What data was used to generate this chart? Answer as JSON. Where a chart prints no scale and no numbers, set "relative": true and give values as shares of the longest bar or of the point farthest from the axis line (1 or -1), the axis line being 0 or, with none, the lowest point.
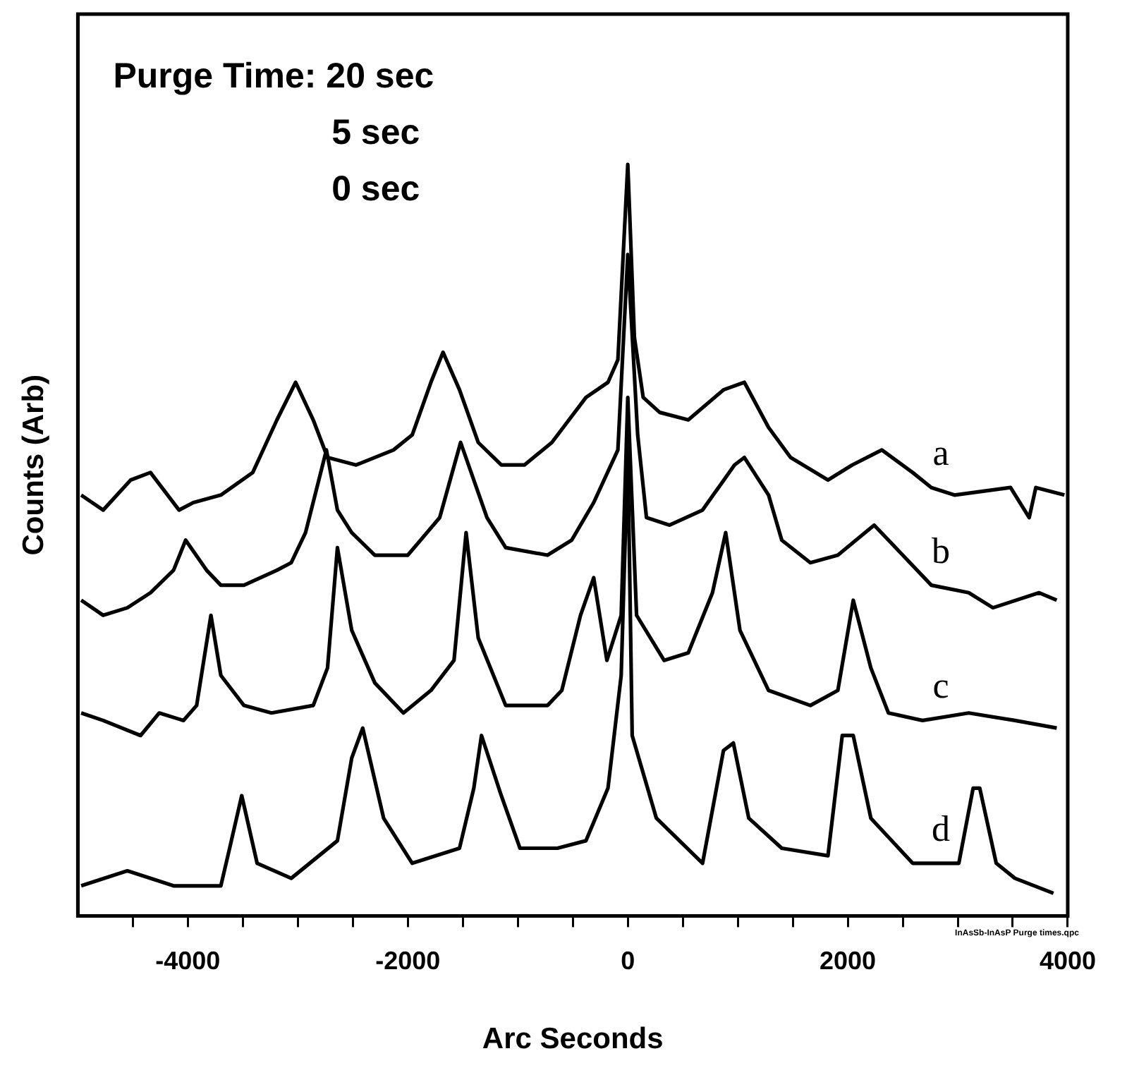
{
  "chart_data": {
    "type": "line",
    "relative": true,
    "xlabel": "Arc Seconds",
    "ylabel": "Counts (Arb)",
    "xlim": [
      -5000,
      4000
    ],
    "xticks": [
      {
        "value": -4500,
        "label": null
      },
      -4000,
      {
        "value": -3500,
        "label": null
      },
      {
        "value": -3000,
        "label": null
      },
      {
        "value": -2500,
        "label": null
      },
      -2000,
      {
        "value": -1500,
        "label": null
      },
      {
        "value": -1000,
        "label": null
      },
      {
        "value": -500,
        "label": null
      },
      0,
      {
        "value": 500,
        "label": null
      },
      {
        "value": 1000,
        "label": null
      },
      {
        "value": 1500,
        "label": null
      },
      2000,
      {
        "value": 2500,
        "label": null
      },
      {
        "value": 3000,
        "label": null
      },
      {
        "value": 3500,
        "label": null
      },
      4000
    ],
    "grid": false,
    "legend": false,
    "marker": "none",
    "line_style": "solid",
    "annotations": [
      "Purge Time: 20 sec",
      "5 sec",
      "0 sec",
      "InAsSb-InAsP Purge times.qpc"
    ],
    "series": [
      {
        "name": "a",
        "color": "#000000",
        "x": [
          -4970,
          -4770,
          -4520,
          -4340,
          -4080,
          -3950,
          -3700,
          -3410,
          -3190,
          -3020,
          -2860,
          -2730,
          -2470,
          -2130,
          -1960,
          -1790,
          -1680,
          -1530,
          -1360,
          -1150,
          -940,
          -690,
          -380,
          -180,
          -90,
          0,
          60,
          140,
          290,
          550,
          870,
          1060,
          1280,
          1480,
          1820,
          2040,
          2310,
          2590,
          2760,
          2970,
          3480,
          3650,
          3710,
          3970
        ],
        "values": [
          0.56,
          0.54,
          0.58,
          0.59,
          0.54,
          0.55,
          0.56,
          0.59,
          0.66,
          0.71,
          0.66,
          0.61,
          0.6,
          0.62,
          0.64,
          0.71,
          0.75,
          0.7,
          0.63,
          0.6,
          0.6,
          0.63,
          0.69,
          0.71,
          0.74,
          1.0,
          0.77,
          0.69,
          0.67,
          0.66,
          0.7,
          0.71,
          0.65,
          0.61,
          0.58,
          0.6,
          0.62,
          0.59,
          0.57,
          0.56,
          0.57,
          0.53,
          0.57,
          0.56
        ]
      },
      {
        "name": "b",
        "color": "#000000",
        "x": [
          -4970,
          -4770,
          -4550,
          -4340,
          -4130,
          -4020,
          -3830,
          -3700,
          -3490,
          -3190,
          -3060,
          -2930,
          -2740,
          -2640,
          -2510,
          -2300,
          -2000,
          -1710,
          -1520,
          -1280,
          -1110,
          -730,
          -510,
          -310,
          -90,
          0,
          90,
          170,
          380,
          680,
          970,
          1060,
          1280,
          1400,
          1660,
          1910,
          2240,
          2500,
          2760,
          3100,
          3320,
          3740,
          3900
        ],
        "values": [
          0.42,
          0.4,
          0.41,
          0.43,
          0.46,
          0.5,
          0.46,
          0.44,
          0.44,
          0.46,
          0.47,
          0.51,
          0.62,
          0.54,
          0.51,
          0.48,
          0.48,
          0.53,
          0.63,
          0.53,
          0.49,
          0.48,
          0.5,
          0.55,
          0.62,
          0.88,
          0.64,
          0.53,
          0.52,
          0.54,
          0.6,
          0.61,
          0.56,
          0.5,
          0.47,
          0.48,
          0.52,
          0.48,
          0.44,
          0.43,
          0.41,
          0.43,
          0.42
        ]
      },
      {
        "name": "c",
        "color": "#000000",
        "x": [
          -4970,
          -4770,
          -4430,
          -4260,
          -4040,
          -3920,
          -3790,
          -3700,
          -3490,
          -3240,
          -2860,
          -2730,
          -2640,
          -2510,
          -2300,
          -2040,
          -1790,
          -1580,
          -1470,
          -1360,
          -1110,
          -730,
          -600,
          -430,
          -310,
          -190,
          -60,
          0,
          80,
          330,
          550,
          770,
          890,
          1020,
          1280,
          1660,
          1910,
          2050,
          2210,
          2370,
          2680,
          3100,
          3520,
          3900
        ],
        "values": [
          0.27,
          0.26,
          0.24,
          0.27,
          0.26,
          0.28,
          0.4,
          0.32,
          0.28,
          0.27,
          0.28,
          0.33,
          0.49,
          0.38,
          0.31,
          0.27,
          0.3,
          0.34,
          0.51,
          0.37,
          0.28,
          0.28,
          0.3,
          0.4,
          0.45,
          0.34,
          0.4,
          0.69,
          0.4,
          0.34,
          0.35,
          0.43,
          0.51,
          0.38,
          0.3,
          0.28,
          0.3,
          0.42,
          0.33,
          0.27,
          0.26,
          0.27,
          0.26,
          0.25
        ]
      },
      {
        "name": "d",
        "color": "#000000",
        "x": [
          -4970,
          -4550,
          -4130,
          -3700,
          -3620,
          -3510,
          -3370,
          -3060,
          -2640,
          -2510,
          -2410,
          -2220,
          -1960,
          -1530,
          -1400,
          -1330,
          -1150,
          -980,
          -640,
          -380,
          -180,
          -60,
          0,
          40,
          260,
          680,
          870,
          960,
          1100,
          1400,
          1820,
          1950,
          2050,
          2210,
          2590,
          3010,
          3140,
          3200,
          3350,
          3520,
          3870
        ],
        "values": [
          0.04,
          0.06,
          0.04,
          0.04,
          0.09,
          0.16,
          0.07,
          0.05,
          0.1,
          0.21,
          0.25,
          0.13,
          0.07,
          0.09,
          0.17,
          0.24,
          0.16,
          0.09,
          0.09,
          0.1,
          0.17,
          0.32,
          0.62,
          0.24,
          0.13,
          0.07,
          0.22,
          0.23,
          0.13,
          0.09,
          0.08,
          0.24,
          0.24,
          0.13,
          0.07,
          0.07,
          0.17,
          0.17,
          0.07,
          0.05,
          0.03
        ]
      }
    ]
  }
}
